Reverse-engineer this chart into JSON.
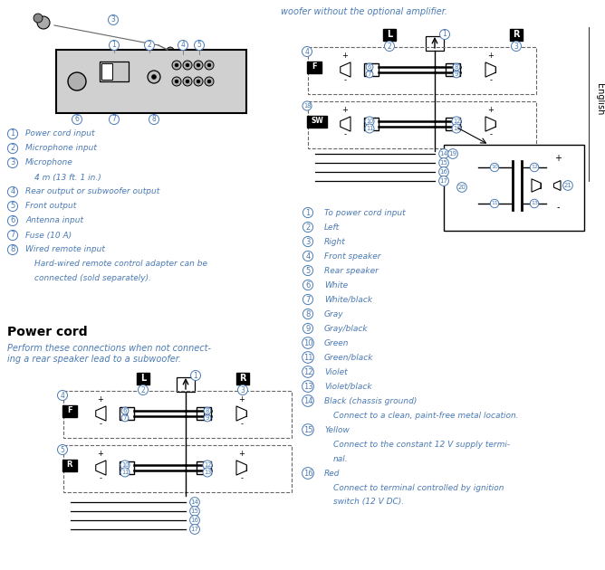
{
  "bg_color": "#ffffff",
  "text_color": "#4a7ab5",
  "black_color": "#000000",
  "gray_color": "#666666",
  "top_text": "woofer without the optional amplifier.",
  "english_label": "English",
  "section_title": "Power cord",
  "section_desc1": "Perform these connections when not connect-",
  "section_desc2": "ing a rear speaker lead to a subwoofer.",
  "left_legend": [
    [
      "1",
      "Power cord input",
      false
    ],
    [
      "2",
      "Microphone input",
      false
    ],
    [
      "3",
      "Microphone",
      false
    ],
    [
      "",
      "4 m (13 ft. 1 in.)",
      true
    ],
    [
      "4",
      "Rear output or subwoofer output",
      false
    ],
    [
      "5",
      "Front output",
      false
    ],
    [
      "6",
      "Antenna input",
      false
    ],
    [
      "7",
      "Fuse (10 A)",
      false
    ],
    [
      "8",
      "Wired remote input",
      false
    ],
    [
      "",
      "Hard-wired remote control adapter can be",
      true
    ],
    [
      "",
      "connected (sold separately).",
      true
    ]
  ],
  "right_legend": [
    [
      "1",
      "To power cord input",
      false
    ],
    [
      "2",
      "Left",
      false
    ],
    [
      "3",
      "Right",
      false
    ],
    [
      "4",
      "Front speaker",
      false
    ],
    [
      "5",
      "Rear speaker",
      false
    ],
    [
      "6",
      "White",
      false
    ],
    [
      "7",
      "White/black",
      false
    ],
    [
      "8",
      "Gray",
      false
    ],
    [
      "9",
      "Gray/black",
      false
    ],
    [
      "10",
      "Green",
      false
    ],
    [
      "11",
      "Green/black",
      false
    ],
    [
      "12",
      "Violet",
      false
    ],
    [
      "13",
      "Violet/black",
      false
    ],
    [
      "14",
      "Black (chassis ground)",
      false
    ],
    [
      "",
      "Connect to a clean, paint-free metal location.",
      true
    ],
    [
      "15",
      "Yellow",
      false
    ],
    [
      "",
      "Connect to the constant 12 V supply termi-",
      true
    ],
    [
      "",
      "nal.",
      true
    ],
    [
      "16",
      "Red",
      false
    ],
    [
      "",
      "Connect to terminal controlled by ignition",
      true
    ],
    [
      "",
      "switch (12 V DC).",
      true
    ]
  ]
}
